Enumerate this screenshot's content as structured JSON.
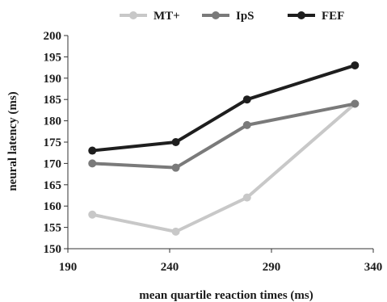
{
  "chart_data": {
    "type": "line",
    "xlabel": "mean quartile reaction times (ms)",
    "ylabel": "neural latency (ms)",
    "xlim": [
      190,
      340
    ],
    "ylim": [
      150,
      200
    ],
    "xticks": [
      190,
      240,
      290,
      340
    ],
    "yticks": [
      150,
      155,
      160,
      165,
      170,
      175,
      180,
      185,
      190,
      195,
      200
    ],
    "grid": false,
    "legend_position": "top",
    "series": [
      {
        "name": "MT+",
        "color": "#c8c8c8",
        "x": [
          202,
          243,
          278,
          331
        ],
        "y": [
          158,
          154,
          162,
          184
        ]
      },
      {
        "name": "IpS",
        "color": "#7a7a7a",
        "x": [
          202,
          243,
          278,
          331
        ],
        "y": [
          170,
          169,
          179,
          184
        ]
      },
      {
        "name": "FEF",
        "color": "#1e1e1e",
        "x": [
          202,
          243,
          278,
          331
        ],
        "y": [
          173,
          175,
          185,
          193
        ]
      }
    ]
  }
}
